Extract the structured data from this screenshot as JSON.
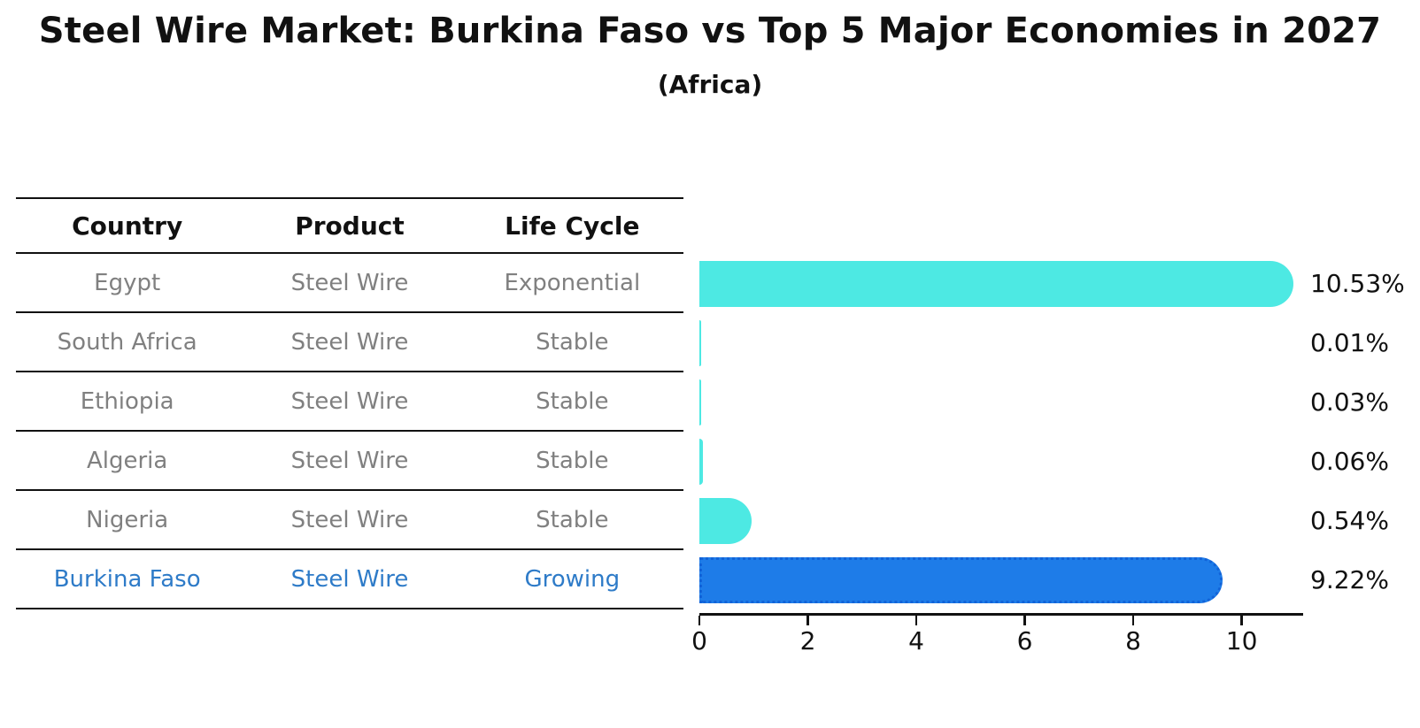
{
  "title": "Steel Wire Market: Burkina Faso vs Top 5 Major Economies in 2027",
  "subtitle": "(Africa)",
  "table": {
    "headers": [
      "Country",
      "Product",
      "Life Cycle"
    ],
    "rows": [
      {
        "country": "Egypt",
        "product": "Steel Wire",
        "life_cycle": "Exponential",
        "highlighted": false
      },
      {
        "country": "South Africa",
        "product": "Steel Wire",
        "life_cycle": "Stable",
        "highlighted": false
      },
      {
        "country": "Ethiopia",
        "product": "Steel Wire",
        "life_cycle": "Stable",
        "highlighted": false
      },
      {
        "country": "Algeria",
        "product": "Steel Wire",
        "life_cycle": "Stable",
        "highlighted": false
      },
      {
        "country": "Nigeria",
        "product": "Steel Wire",
        "life_cycle": "Stable",
        "highlighted": false
      },
      {
        "country": "Burkina Faso",
        "product": "Steel Wire",
        "life_cycle": "Growing",
        "highlighted": true
      }
    ]
  },
  "chart_data": {
    "type": "bar",
    "orientation": "horizontal",
    "title": "Steel Wire Market: Burkina Faso vs Top 5 Major Economies in 2027",
    "subtitle": "(Africa)",
    "categories": [
      "Egypt",
      "South Africa",
      "Ethiopia",
      "Algeria",
      "Nigeria",
      "Burkina Faso"
    ],
    "values": [
      10.53,
      0.01,
      0.03,
      0.06,
      0.54,
      9.22
    ],
    "value_labels": [
      "10.53%",
      "0.01%",
      "0.03%",
      "0.06%",
      "0.54%",
      "9.22%"
    ],
    "xticks": [
      0,
      2,
      4,
      6,
      8,
      10
    ],
    "xlim": [
      0,
      11.1
    ],
    "grid": false,
    "legend": false,
    "bar_colors": [
      "#4de9e3",
      "#4de9e3",
      "#4de9e3",
      "#4de9e3",
      "#4de9e3",
      "#1e7ce8"
    ],
    "bar_styles": [
      "solid",
      "solid",
      "solid",
      "solid",
      "solid",
      "dotted-outline"
    ]
  },
  "colors": {
    "default_bar": "#4de9e3",
    "highlight_bar": "#1e7ce8",
    "highlight_text": "#2e7bc8",
    "row_text": "#808080",
    "axis_text": "#111111"
  }
}
